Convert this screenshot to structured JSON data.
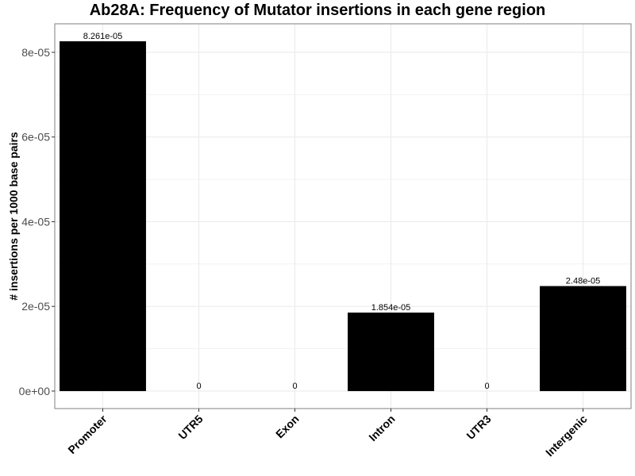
{
  "chart_data": {
    "type": "bar",
    "title": "Ab28A: Frequency of Mutator insertions in each gene region",
    "xlabel": "",
    "ylabel": "# insertions per 1000 base pairs",
    "categories": [
      "Promoter",
      "UTR5",
      "Exon",
      "Intron",
      "UTR3",
      "Intergenic"
    ],
    "values": [
      8.261e-05,
      0,
      0,
      1.854e-05,
      0,
      2.48e-05
    ],
    "data_labels": [
      "8.261e-05",
      "0",
      "0",
      "1.854e-05",
      "0",
      "2.48e-05"
    ],
    "ylim": [
      -4.13e-06,
      8.674e-05
    ],
    "yticks": [
      0,
      2e-05,
      4e-05,
      6e-05,
      8e-05
    ],
    "ytick_labels": [
      "0e+00",
      "2e-05",
      "4e-05",
      "6e-05",
      "8e-05"
    ],
    "grid": true,
    "bar_color": "#000000",
    "grid_color": "#ebebeb",
    "panel_border_color": "#7f7f7f"
  }
}
